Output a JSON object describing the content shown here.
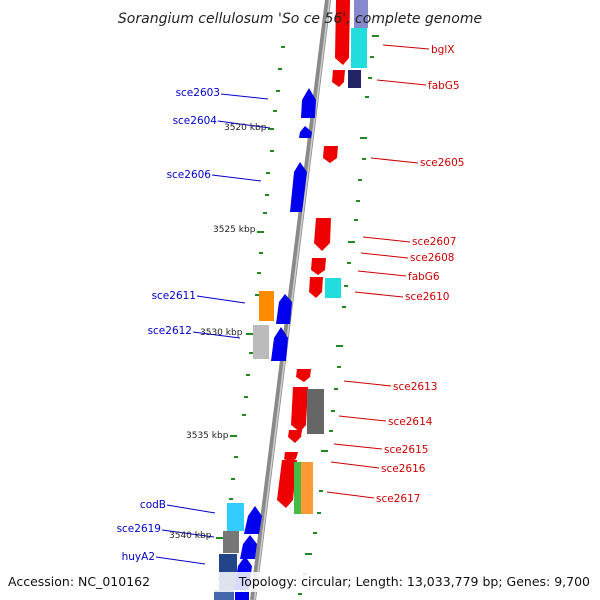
{
  "title": "Sorangium cellulosum 'So ce 56', complete genome",
  "footer": {
    "accession": "Accession: NC_010162",
    "summary": "Topology: circular; Length: 13,033,779 bp; Genes: 9,700"
  },
  "colors": {
    "plus": "#0000ee",
    "minus": "#ee0000",
    "backbone": "#888888",
    "tick": "#228822"
  },
  "kbp_labels": [
    "3520 kbp",
    "3525 kbp",
    "3530 kbp",
    "3535 kbp",
    "3540 kbp"
  ],
  "genes_left": [
    {
      "id": "sce2603",
      "label": "sce2603"
    },
    {
      "id": "sce2604",
      "label": "sce2604"
    },
    {
      "id": "sce2606",
      "label": "sce2606"
    },
    {
      "id": "sce2611",
      "label": "sce2611"
    },
    {
      "id": "sce2612",
      "label": "sce2612"
    },
    {
      "id": "codB",
      "label": "codB"
    },
    {
      "id": "sce2619",
      "label": "sce2619"
    },
    {
      "id": "huyA2",
      "label": "huyA2"
    }
  ],
  "genes_right": [
    {
      "id": "bglX",
      "label": "bglX"
    },
    {
      "id": "fabG5",
      "label": "fabG5"
    },
    {
      "id": "sce2605",
      "label": "sce2605"
    },
    {
      "id": "sce2607",
      "label": "sce2607"
    },
    {
      "id": "sce2608",
      "label": "sce2608"
    },
    {
      "id": "fabG6",
      "label": "fabG6"
    },
    {
      "id": "sce2610",
      "label": "sce2610"
    },
    {
      "id": "sce2613",
      "label": "sce2613"
    },
    {
      "id": "sce2614",
      "label": "sce2614"
    },
    {
      "id": "sce2615",
      "label": "sce2615"
    },
    {
      "id": "sce2616",
      "label": "sce2616"
    },
    {
      "id": "sce2617",
      "label": "sce2617"
    }
  ]
}
